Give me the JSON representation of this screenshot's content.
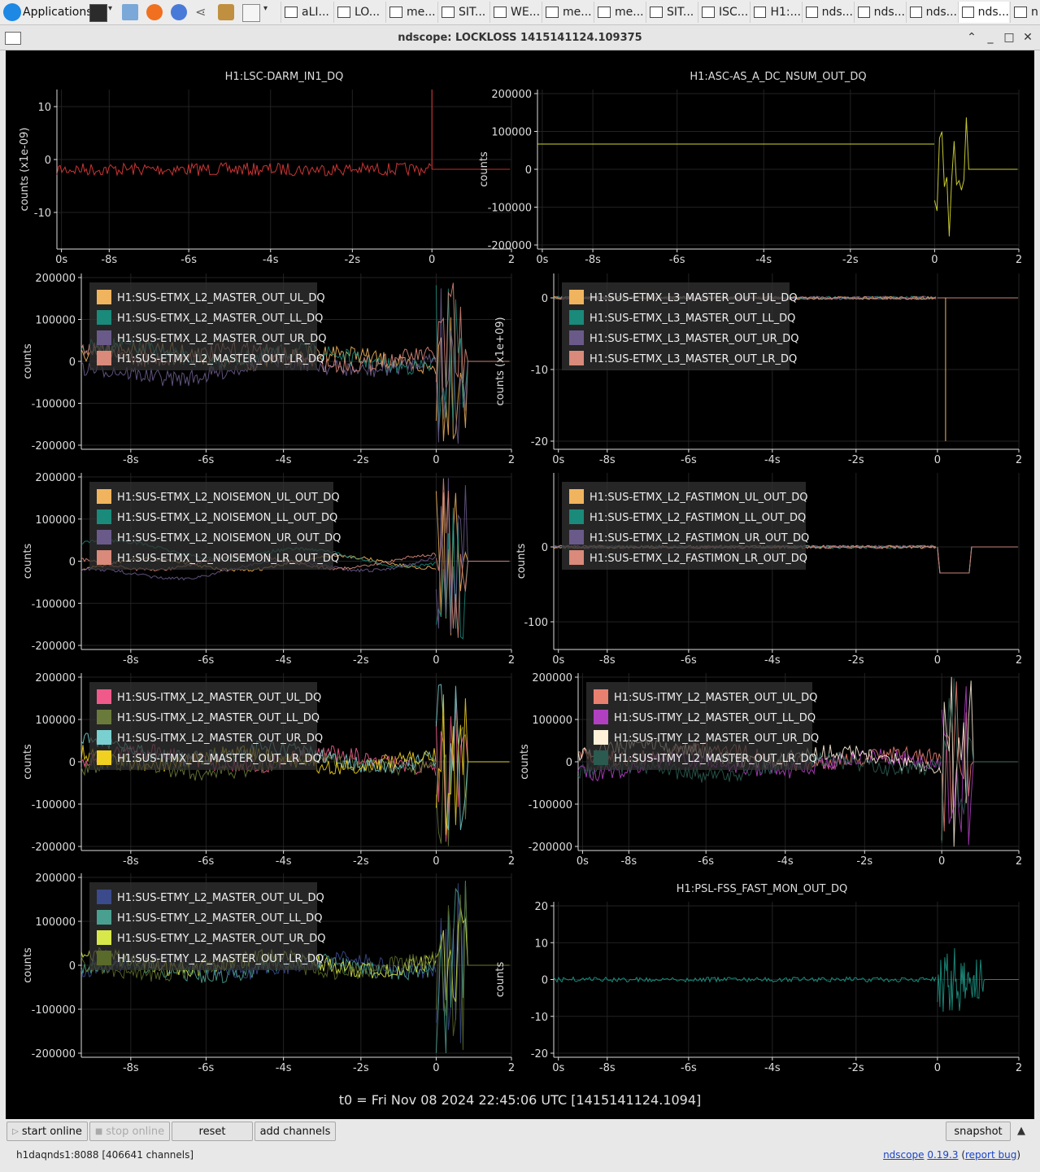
{
  "taskbar": {
    "applications_label": "Applications",
    "tasks": [
      "aLI...",
      "LO...",
      "me...",
      "SIT...",
      "WE...",
      "me...",
      "me...",
      "SIT...",
      "ISC...",
      "H1:...",
      "nds...",
      "nds...",
      "nds...",
      "nds...",
      "n"
    ]
  },
  "window": {
    "title": "ndscope: LOCKLOSS 1415141124.109375"
  },
  "colors": {
    "background": "#000000",
    "axis": "#dddddd",
    "grid": "#222222",
    "legend_bg": "#333333"
  },
  "plots": [
    {
      "id": "p1",
      "title": "H1:LSC-DARM_IN1_DQ",
      "ylabel": "counts (x1e-09)",
      "yticks": [
        "10",
        "0",
        "-10"
      ],
      "xticks": [
        "0s",
        "-8s",
        "-6s",
        "-4s",
        "-2s",
        "0",
        "2"
      ],
      "channels": [],
      "colors": [
        "#e03a3a"
      ]
    },
    {
      "id": "p2",
      "title": "H1:ASC-AS_A_DC_NSUM_OUT_DQ",
      "ylabel": "counts",
      "yticks": [
        "200000",
        "100000",
        "0",
        "-100000",
        "-200000"
      ],
      "xticks": [
        "0s",
        "-8s",
        "-6s",
        "-4s",
        "-2s",
        "0",
        "2"
      ],
      "channels": [],
      "colors": [
        "#e6ea3a"
      ]
    },
    {
      "id": "p3",
      "title": "",
      "ylabel": "counts",
      "yticks": [
        "200000",
        "100000",
        "0",
        "-100000",
        "-200000"
      ],
      "xticks": [
        "-8s",
        "-6s",
        "-4s",
        "-2s",
        "0",
        "2"
      ],
      "channels": [
        "H1:SUS-ETMX_L2_MASTER_OUT_UL_DQ",
        "H1:SUS-ETMX_L2_MASTER_OUT_LL_DQ",
        "H1:SUS-ETMX_L2_MASTER_OUT_UR_DQ",
        "H1:SUS-ETMX_L2_MASTER_OUT_LR_DQ"
      ],
      "colors": [
        "#f1b45e",
        "#1a8a7a",
        "#6a5a8a",
        "#d98a7a"
      ]
    },
    {
      "id": "p4",
      "title": "",
      "ylabel": "counts (x1e+09)",
      "yticks": [
        "0",
        "-10",
        "-20"
      ],
      "xticks": [
        "0s",
        "-8s",
        "-6s",
        "-4s",
        "-2s",
        "0",
        "2"
      ],
      "channels": [
        "H1:SUS-ETMX_L3_MASTER_OUT_UL_DQ",
        "H1:SUS-ETMX_L3_MASTER_OUT_LL_DQ",
        "H1:SUS-ETMX_L3_MASTER_OUT_UR_DQ",
        "H1:SUS-ETMX_L3_MASTER_OUT_LR_DQ"
      ],
      "colors": [
        "#f1b45e",
        "#1a8a7a",
        "#6a5a8a",
        "#d98a7a"
      ]
    },
    {
      "id": "p5",
      "title": "",
      "ylabel": "counts",
      "yticks": [
        "200000",
        "100000",
        "0",
        "-100000",
        "-200000"
      ],
      "xticks": [
        "-8s",
        "-6s",
        "-4s",
        "-2s",
        "0",
        "2"
      ],
      "channels": [
        "H1:SUS-ETMX_L2_NOISEMON_UL_OUT_DQ",
        "H1:SUS-ETMX_L2_NOISEMON_LL_OUT_DQ",
        "H1:SUS-ETMX_L2_NOISEMON_UR_OUT_DQ",
        "H1:SUS-ETMX_L2_NOISEMON_LR_OUT_DQ"
      ],
      "colors": [
        "#f1b45e",
        "#1a8a7a",
        "#6a5a8a",
        "#d98a7a"
      ]
    },
    {
      "id": "p6",
      "title": "",
      "ylabel": "counts",
      "yticks": [
        "0",
        "-100"
      ],
      "xticks": [
        "0s",
        "-8s",
        "-6s",
        "-4s",
        "-2s",
        "0",
        "2"
      ],
      "channels": [
        "H1:SUS-ETMX_L2_FASTIMON_UL_OUT_DQ",
        "H1:SUS-ETMX_L2_FASTIMON_LL_OUT_DQ",
        "H1:SUS-ETMX_L2_FASTIMON_UR_OUT_DQ",
        "H1:SUS-ETMX_L2_FASTIMON_LR_OUT_DQ"
      ],
      "colors": [
        "#f1b45e",
        "#1a8a7a",
        "#6a5a8a",
        "#d98a7a"
      ]
    },
    {
      "id": "p7",
      "title": "",
      "ylabel": "counts",
      "yticks": [
        "200000",
        "100000",
        "0",
        "-100000",
        "-200000"
      ],
      "xticks": [
        "-8s",
        "-6s",
        "-4s",
        "-2s",
        "0",
        "2"
      ],
      "channels": [
        "H1:SUS-ITMX_L2_MASTER_OUT_UL_DQ",
        "H1:SUS-ITMX_L2_MASTER_OUT_LL_DQ",
        "H1:SUS-ITMX_L2_MASTER_OUT_UR_DQ",
        "H1:SUS-ITMX_L2_MASTER_OUT_LR_DQ"
      ],
      "colors": [
        "#ef5a8a",
        "#6a7a3a",
        "#7ad0d0",
        "#f0d020"
      ]
    },
    {
      "id": "p8",
      "title": "",
      "ylabel": "counts",
      "yticks": [
        "200000",
        "100000",
        "0",
        "-100000",
        "-200000"
      ],
      "xticks": [
        "0s",
        "-8s",
        "-6s",
        "-4s",
        "-2s",
        "0",
        "2"
      ],
      "channels": [
        "H1:SUS-ITMY_L2_MASTER_OUT_UL_DQ",
        "H1:SUS-ITMY_L2_MASTER_OUT_LL_DQ",
        "H1:SUS-ITMY_L2_MASTER_OUT_UR_DQ",
        "H1:SUS-ITMY_L2_MASTER_OUT_LR_DQ"
      ],
      "colors": [
        "#e88070",
        "#b040c0",
        "#fff0d8",
        "#2a5a50"
      ]
    },
    {
      "id": "p9",
      "title": "",
      "ylabel": "counts",
      "yticks": [
        "200000",
        "100000",
        "0",
        "-100000",
        "-200000"
      ],
      "xticks": [
        "-8s",
        "-6s",
        "-4s",
        "-2s",
        "0",
        "2"
      ],
      "channels": [
        "H1:SUS-ETMY_L2_MASTER_OUT_UL_DQ",
        "H1:SUS-ETMY_L2_MASTER_OUT_LL_DQ",
        "H1:SUS-ETMY_L2_MASTER_OUT_UR_DQ",
        "H1:SUS-ETMY_L2_MASTER_OUT_LR_DQ"
      ],
      "colors": [
        "#3a4a8a",
        "#4aa090",
        "#d8e84a",
        "#5a6a2a"
      ]
    },
    {
      "id": "p10",
      "title": "H1:PSL-FSS_FAST_MON_OUT_DQ",
      "ylabel": "counts",
      "yticks": [
        "20",
        "10",
        "0",
        "-10",
        "-20"
      ],
      "xticks": [
        "0s",
        "-8s",
        "-6s",
        "-4s",
        "-2s",
        "0",
        "2"
      ],
      "channels": [],
      "colors": [
        "#1e9a8a"
      ]
    }
  ],
  "t0_label": "t0 = Fri Nov 08 2024 22:45:06 UTC [1415141124.1094]",
  "buttons": {
    "start": "start online",
    "stop": "stop online",
    "reset": "reset",
    "add": "add channels",
    "snapshot": "snapshot"
  },
  "status": {
    "server": "h1daqnds1:8088  [406641 channels]",
    "app_name": "ndscope",
    "version": "0.19.3",
    "report": "report bug"
  }
}
